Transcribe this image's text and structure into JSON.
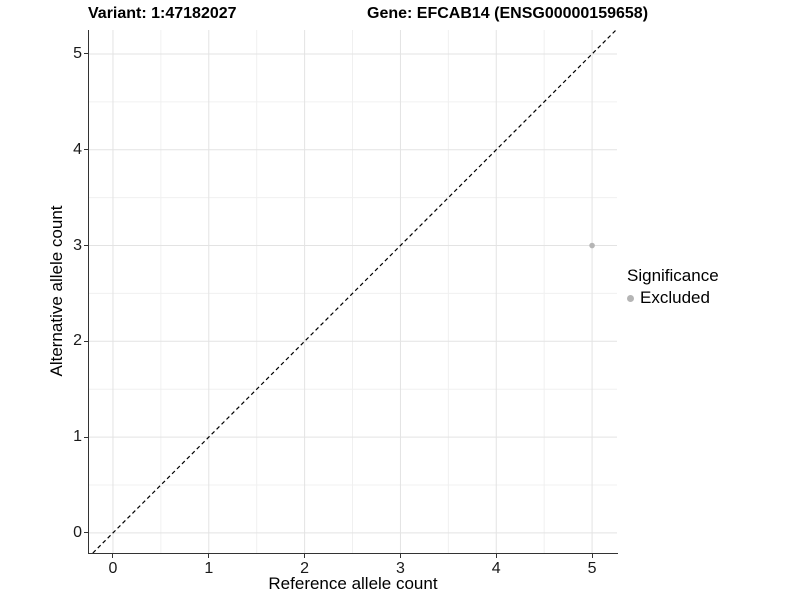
{
  "chart_data": {
    "type": "scatter",
    "title_left": "Variant: 1:47182027",
    "title_right": "Gene: EFCAB14 (ENSG00000159658)",
    "xlabel": "Reference allele count",
    "ylabel": "Alternative allele count",
    "x_ticks": [
      0,
      1,
      2,
      3,
      4,
      5
    ],
    "y_ticks": [
      0,
      1,
      2,
      3,
      4,
      5
    ],
    "minor_x": [
      0.5,
      1.5,
      2.5,
      3.5,
      4.5
    ],
    "minor_y": [
      0.5,
      1.5,
      2.5,
      3.5,
      4.5
    ],
    "x_range": [
      -0.25,
      5.26
    ],
    "y_range": [
      -0.21,
      5.25
    ],
    "grid": true,
    "identity_line": {
      "slope": 1,
      "intercept": 0,
      "style": "dashed",
      "color": "#000000"
    },
    "points": [
      {
        "x": 5,
        "y": 3,
        "significance": "Excluded"
      }
    ],
    "legend": {
      "position": "right",
      "title": "Significance",
      "items": [
        {
          "label": "Excluded",
          "color": "#b5b5b5"
        }
      ]
    },
    "colors": {
      "point": "#b5b5b5",
      "grid_major": "#e3e3e3",
      "grid_minor": "#f0f0f0",
      "axis_line": "#333333",
      "tick_text": "#1a1a1a",
      "title_text": "#000000",
      "background": "#ffffff"
    }
  }
}
